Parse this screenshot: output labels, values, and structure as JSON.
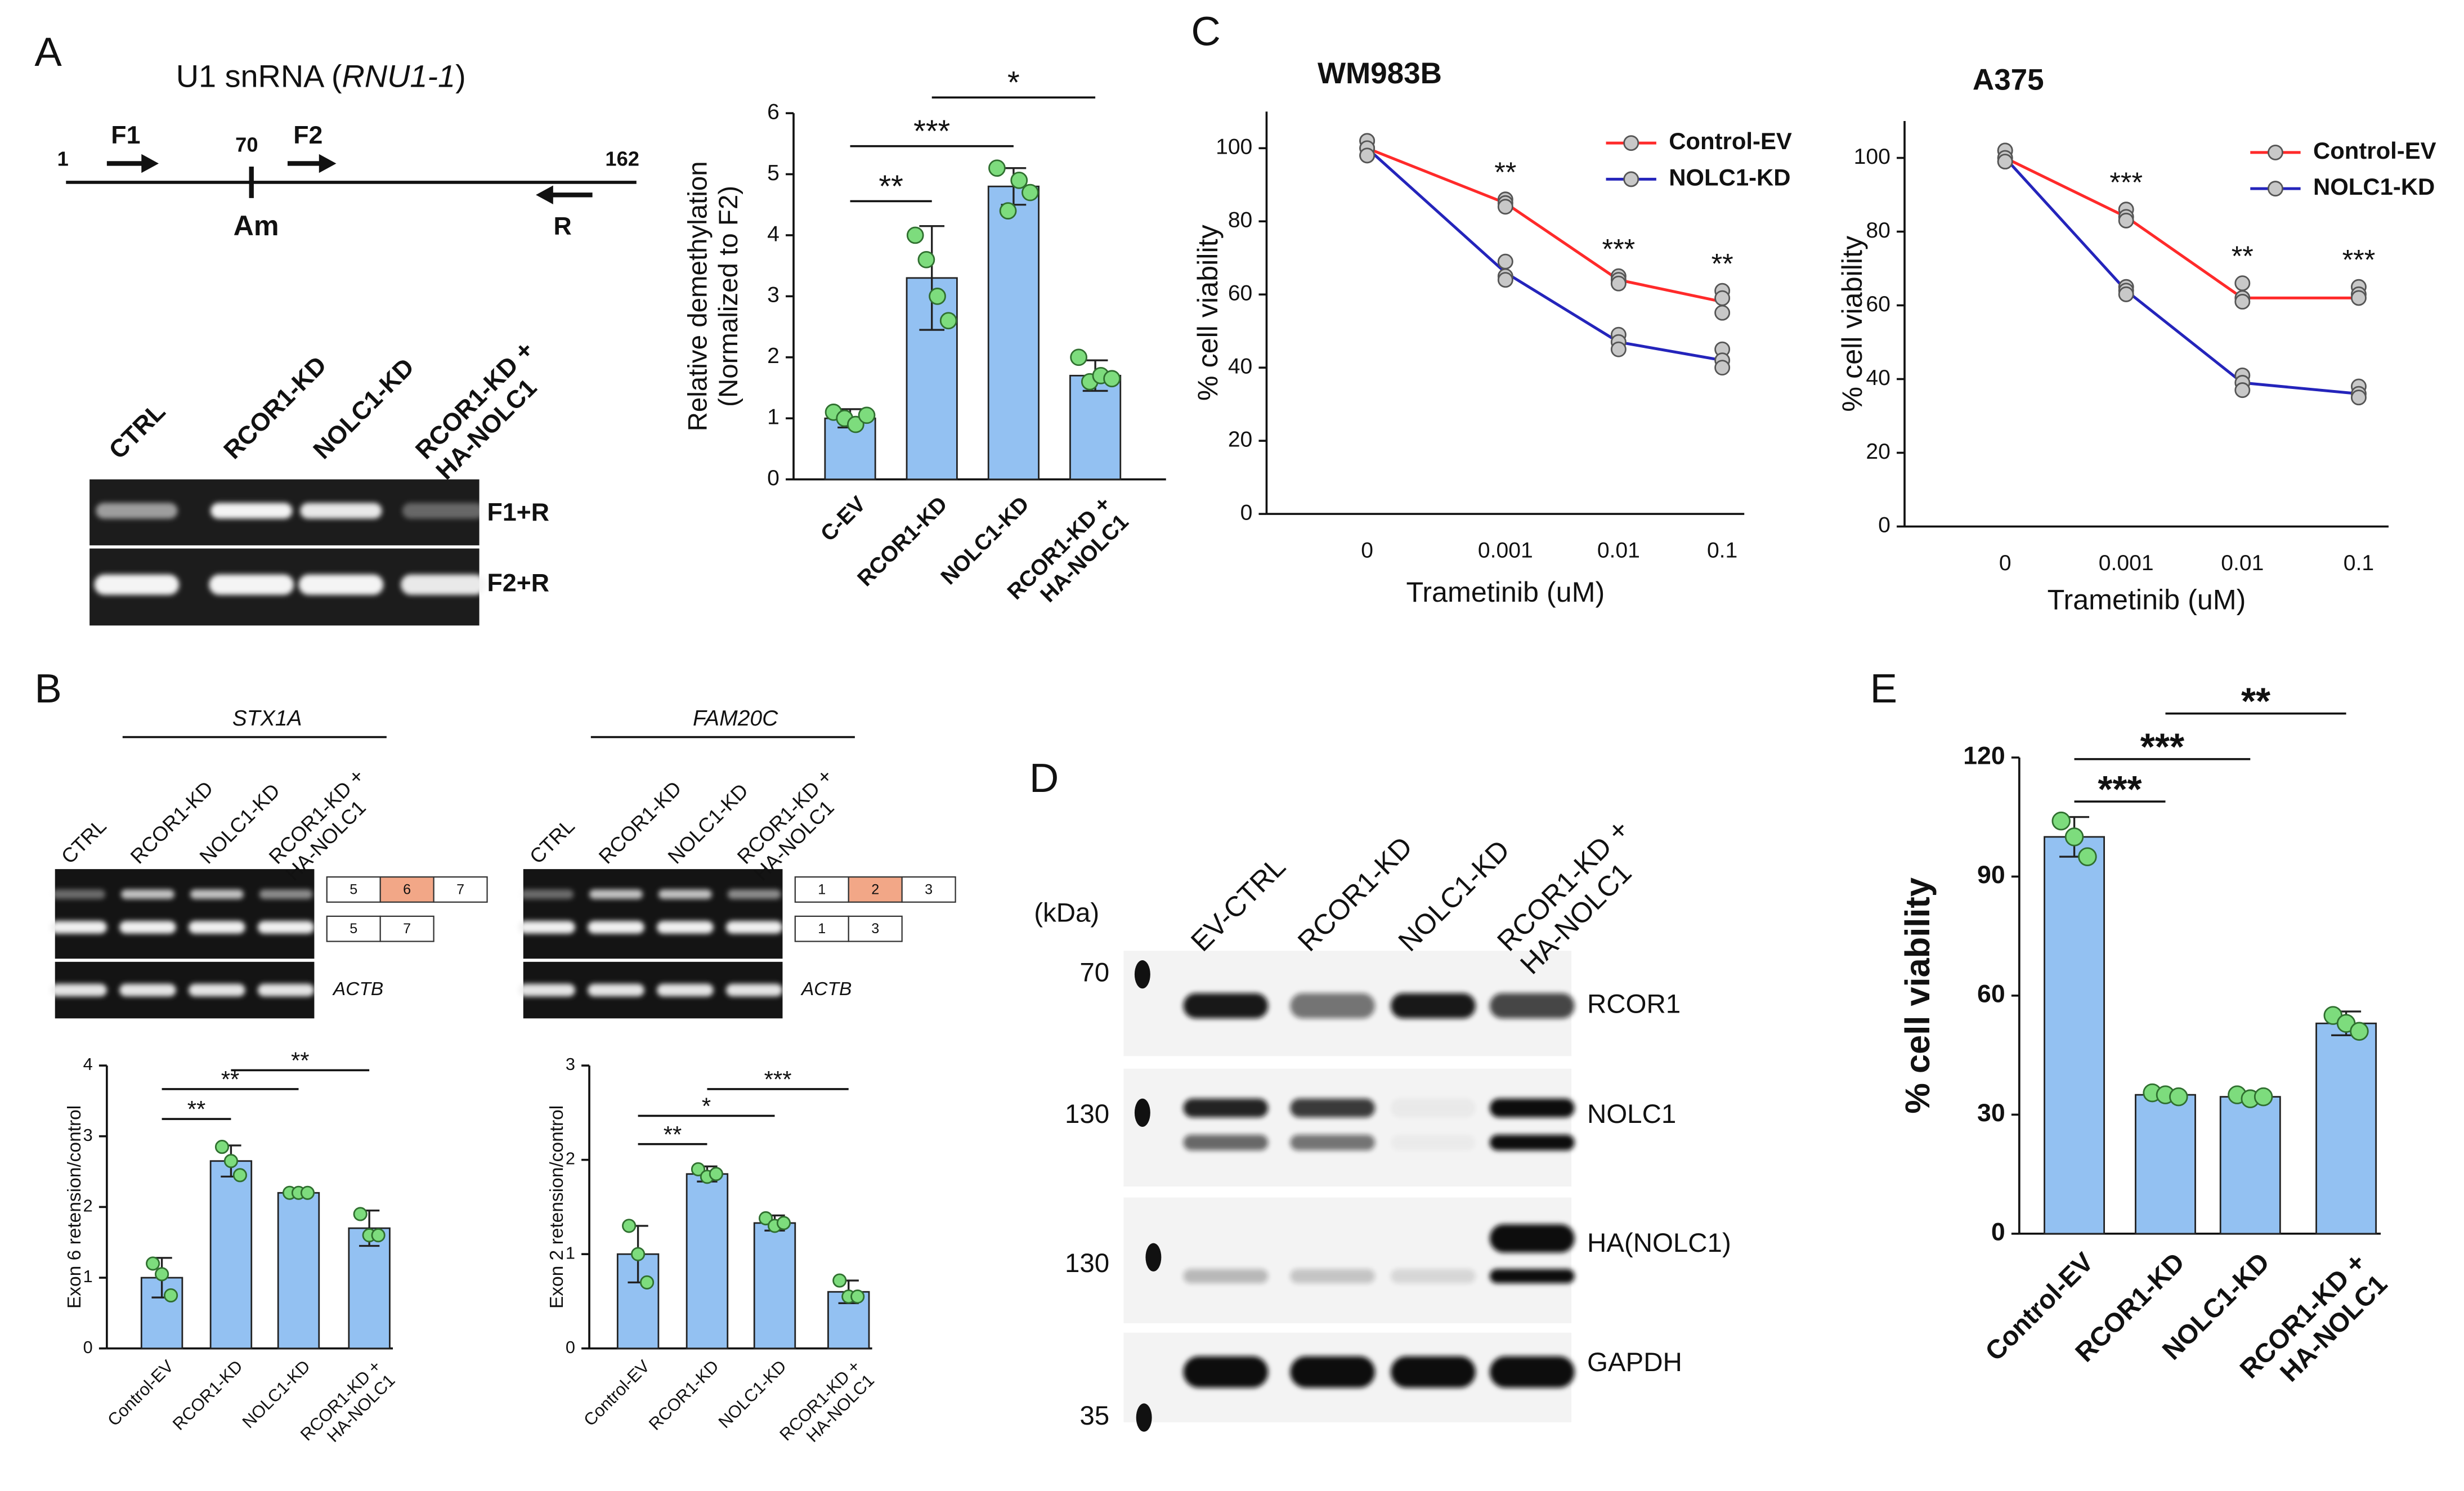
{
  "panel_labels": [
    "A",
    "B",
    "C",
    "D",
    "E"
  ],
  "diagram": {
    "title": [
      "U1 snRNA (",
      "RNU1-1",
      ")"
    ],
    "positions": [
      1,
      70,
      162
    ],
    "primers": [
      "F1",
      "F2",
      "R"
    ],
    "site": "Am"
  },
  "gel_a": {
    "lanes": [
      "CTRL",
      "RCOR1-KD",
      "NOLC1-KD",
      "RCOR1-KD +\nHA-NOLC1"
    ],
    "products": [
      "F1+R",
      "F2+R"
    ]
  },
  "gels_b": [
    {
      "gene": "STX1A",
      "lanes": [
        "CTRL",
        "RCOR1-KD",
        "NOLC1-KD",
        "RCOR1-KD +\nHA-NOLC1"
      ],
      "isoforms": [
        [
          "5",
          "6",
          "7"
        ],
        [
          "5",
          "7"
        ]
      ],
      "loading": "ACTB"
    },
    {
      "gene": "FAM20C",
      "lanes": [
        "CTRL",
        "RCOR1-KD",
        "NOLC1-KD",
        "RCOR1-KD +\nHA-NOLC1"
      ],
      "isoforms": [
        [
          "1",
          "2",
          "3"
        ],
        [
          "1",
          "3"
        ]
      ],
      "loading": "ACTB"
    }
  ],
  "blot_d": {
    "unit": "(kDa)",
    "markers": [
      70,
      130,
      130,
      35
    ],
    "lanes": [
      "EV-CTRL",
      "RCOR1-KD",
      "NOLC1-KD",
      "RCOR1-KD +\nHA-NOLC1"
    ],
    "proteins": [
      "RCOR1",
      "NOLC1",
      "HA(NOLC1)",
      "GAPDH"
    ]
  },
  "chart_data": [
    {
      "type": "bar",
      "ylabel": "Relative demethylation\n(Normalized to F2)",
      "categories": [
        "C-EV",
        "RCOR1-KD",
        "NOLC1-KD",
        "RCOR1-KD +\nHA-NOLC1"
      ],
      "values": [
        1.0,
        3.3,
        4.8,
        1.7
      ],
      "errors": [
        0.15,
        0.85,
        0.3,
        0.25
      ],
      "points": [
        [
          1.1,
          1.0,
          0.9,
          1.05
        ],
        [
          4.0,
          3.6,
          3.0,
          2.6
        ],
        [
          5.1,
          4.4,
          4.9,
          4.7
        ],
        [
          2.0,
          1.6,
          1.7,
          1.65
        ]
      ],
      "color": "#93c1f2",
      "point_color": "#7ddc7d",
      "ylim": [
        0,
        6
      ],
      "yticks": [
        0,
        1,
        2,
        3,
        4,
        5,
        6
      ],
      "annotations": [
        "**",
        "***",
        "*"
      ]
    },
    {
      "type": "line",
      "title": "WM983B",
      "ylabel": "% cell viability",
      "xlabel": "Trametinib (uM)",
      "categories": [
        "0",
        "0.001",
        "0.01",
        "0.1"
      ],
      "series": [
        {
          "name": "Control-EV",
          "color": "#ff2a2a",
          "values": [
            100,
            85,
            64,
            58
          ],
          "points": [
            [
              102,
              100,
              98
            ],
            [
              86,
              85,
              84
            ],
            [
              65,
              64,
              63
            ],
            [
              61,
              59,
              55
            ]
          ]
        },
        {
          "name": "NOLC1-KD",
          "color": "#2424bb",
          "values": [
            100,
            66,
            47,
            42
          ],
          "points": [
            [
              102,
              100,
              98
            ],
            [
              69,
              65,
              64
            ],
            [
              49,
              47,
              45
            ],
            [
              45,
              42,
              40
            ]
          ]
        }
      ],
      "point_color": "#c8c8c8",
      "ylim": [
        0,
        110
      ],
      "yticks": [
        0,
        20,
        40,
        60,
        80,
        100
      ],
      "annotations": [
        "**",
        "***",
        "**"
      ],
      "legend": "upper right"
    },
    {
      "type": "line",
      "title": "A375",
      "ylabel": "% cell viability",
      "xlabel": "Trametinib (uM)",
      "categories": [
        "0",
        "0.001",
        "0.01",
        "0.1"
      ],
      "series": [
        {
          "name": "Control-EV",
          "color": "#ff2a2a",
          "values": [
            100,
            84,
            62,
            62
          ],
          "points": [
            [
              102,
              100,
              99
            ],
            [
              86,
              84,
              83
            ],
            [
              66,
              62,
              61
            ],
            [
              65,
              63,
              62
            ]
          ]
        },
        {
          "name": "NOLC1-KD",
          "color": "#2424bb",
          "values": [
            100,
            64,
            39,
            36
          ],
          "points": [
            [
              102,
              100,
              99
            ],
            [
              65,
              64,
              63
            ],
            [
              41,
              39,
              37
            ],
            [
              38,
              36,
              35
            ]
          ]
        }
      ],
      "point_color": "#c8c8c8",
      "ylim": [
        0,
        110
      ],
      "yticks": [
        0,
        20,
        40,
        60,
        80,
        100
      ],
      "annotations": [
        "***",
        "**",
        "***"
      ],
      "legend": "upper right"
    },
    {
      "type": "bar",
      "ylabel": "Exon 6 retension/control",
      "categories": [
        "Control-EV",
        "RCOR1-KD",
        "NOLC1-KD",
        "RCOR1-KD +\nHA-NOLC1"
      ],
      "values": [
        1.0,
        2.65,
        2.2,
        1.7
      ],
      "errors": [
        0.28,
        0.22,
        0.03,
        0.25
      ],
      "points": [
        [
          1.2,
          1.05,
          0.75
        ],
        [
          2.85,
          2.65,
          2.45
        ],
        [
          2.2,
          2.2,
          2.2
        ],
        [
          1.9,
          1.6,
          1.6
        ]
      ],
      "color": "#93c1f2",
      "point_color": "#7ddc7d",
      "ylim": [
        0,
        4
      ],
      "yticks": [
        0,
        1,
        2,
        3,
        4
      ],
      "annotations": [
        "**",
        "**",
        "**"
      ]
    },
    {
      "type": "bar",
      "ylabel": "Exon 2 retension/control",
      "categories": [
        "Control-EV",
        "RCOR1-KD",
        "NOLC1-KD",
        "RCOR1-KD +\nHA-NOLC1"
      ],
      "values": [
        1.0,
        1.85,
        1.33,
        0.6
      ],
      "errors": [
        0.3,
        0.08,
        0.08,
        0.12
      ],
      "points": [
        [
          1.3,
          1.0,
          0.7
        ],
        [
          1.9,
          1.82,
          1.85
        ],
        [
          1.38,
          1.3,
          1.33
        ],
        [
          0.72,
          0.55,
          0.55
        ]
      ],
      "color": "#93c1f2",
      "point_color": "#7ddc7d",
      "ylim": [
        0,
        3
      ],
      "yticks": [
        0,
        1,
        2,
        3
      ],
      "annotations": [
        "**",
        "*",
        "***"
      ]
    },
    {
      "type": "bar",
      "ylabel": "% cell viability",
      "categories": [
        "Control-EV",
        "RCOR1-KD",
        "NOLC1-KD",
        "RCOR1-KD +\nHA-NOLC1"
      ],
      "values": [
        100,
        35,
        34.5,
        53
      ],
      "errors": [
        5,
        1,
        1,
        3
      ],
      "points": [
        [
          104,
          100,
          95
        ],
        [
          35.5,
          35,
          34.5
        ],
        [
          35,
          34,
          34.5
        ],
        [
          55,
          53,
          51
        ]
      ],
      "color": "#93c1f2",
      "point_color": "#7ddc7d",
      "ylim": [
        0,
        120
      ],
      "yticks": [
        0,
        30,
        60,
        90,
        120
      ],
      "annotations": [
        "***",
        "***",
        "**"
      ]
    }
  ]
}
